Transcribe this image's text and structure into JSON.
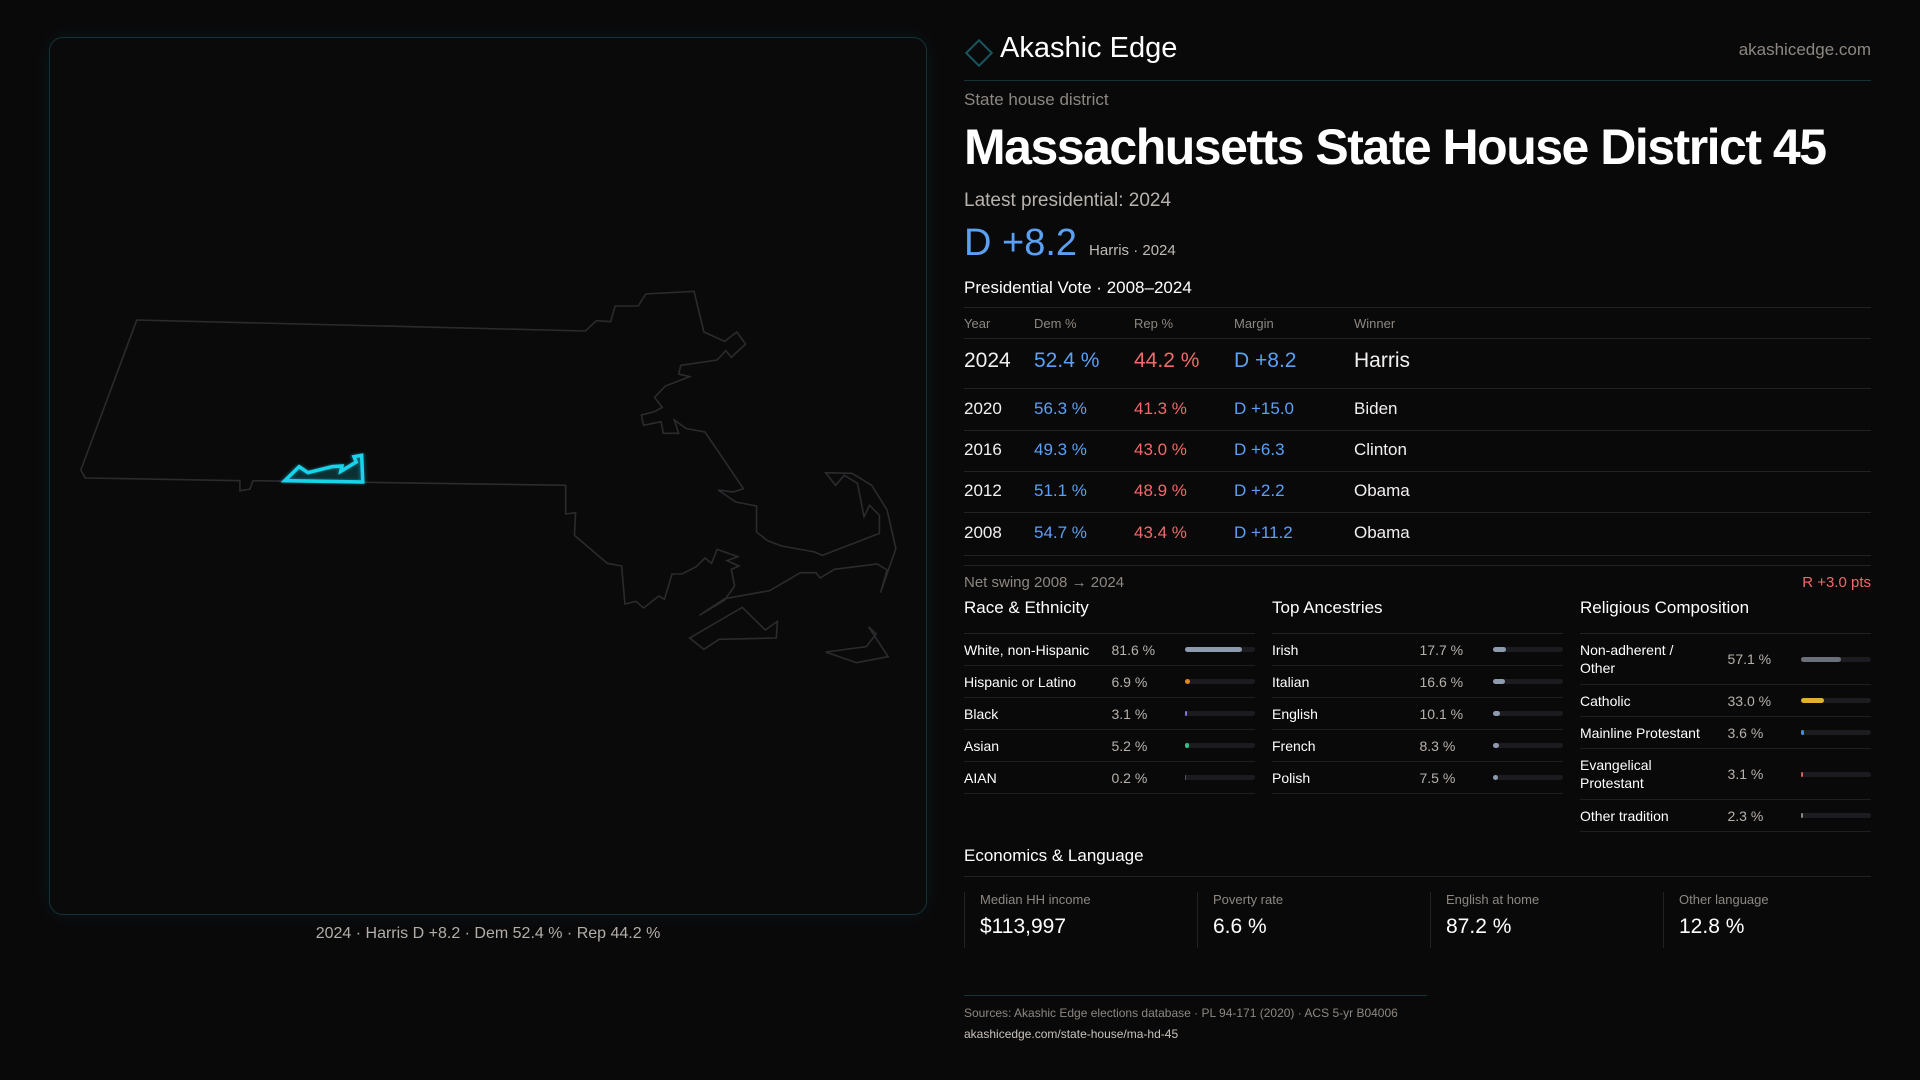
{
  "brand": {
    "name": "Akashic Edge",
    "url": "akashicedge.com"
  },
  "kicker": "State house district",
  "title": "Massachusetts State House District 45",
  "latest_label": "Latest presidential: 2024",
  "headline": {
    "margin": "D +8.2",
    "sub": "Harris · 2024"
  },
  "colors": {
    "dem": "#5aa0f5",
    "rep": "#f06a6a",
    "highlight": "#19d3ea"
  },
  "map": {
    "caption": "2024 · Harris D +8.2 · Dem 52.4 % · Rep 44.2 %"
  },
  "table": {
    "title": "Presidential Vote · 2008–2024",
    "headers": [
      "Year",
      "Dem %",
      "Rep %",
      "Margin",
      "Winner"
    ],
    "rows": [
      {
        "year": "2024",
        "dem": "52.4 %",
        "rep": "44.2 %",
        "margin": "D +8.2",
        "winner": "Harris"
      },
      {
        "year": "2020",
        "dem": "56.3 %",
        "rep": "41.3 %",
        "margin": "D +15.0",
        "winner": "Biden"
      },
      {
        "year": "2016",
        "dem": "49.3 %",
        "rep": "43.0 %",
        "margin": "D +6.3",
        "winner": "Clinton"
      },
      {
        "year": "2012",
        "dem": "51.1 %",
        "rep": "48.9 %",
        "margin": "D +2.2",
        "winner": "Obama"
      },
      {
        "year": "2008",
        "dem": "54.7 %",
        "rep": "43.4 %",
        "margin": "D +11.2",
        "winner": "Obama"
      }
    ]
  },
  "swing": {
    "label": "Net swing 2008 → 2024",
    "value": "R +3.0 pts"
  },
  "sections": [
    {
      "title": "Race & Ethnicity",
      "items": [
        {
          "label": "White, non-Hispanic",
          "value": "81.6 %",
          "pct": 81.6,
          "color": "#8e9aae"
        },
        {
          "label": "Hispanic or Latino",
          "value": "6.9 %",
          "pct": 6.9,
          "color": "#d98a1a"
        },
        {
          "label": "Black",
          "value": "3.1 %",
          "pct": 3.1,
          "color": "#8a6ef0"
        },
        {
          "label": "Asian",
          "value": "5.2 %",
          "pct": 5.2,
          "color": "#2fbf8a"
        },
        {
          "label": "AIAN",
          "value": "0.2 %",
          "pct": 0.2,
          "color": "#555"
        }
      ]
    },
    {
      "title": "Top Ancestries",
      "items": [
        {
          "label": "Irish",
          "value": "17.7 %",
          "pct": 17.7,
          "color": "#8e9aae"
        },
        {
          "label": "Italian",
          "value": "16.6 %",
          "pct": 16.6,
          "color": "#8e9aae"
        },
        {
          "label": "English",
          "value": "10.1 %",
          "pct": 10.1,
          "color": "#8e9aae"
        },
        {
          "label": "French",
          "value": "8.3 %",
          "pct": 8.3,
          "color": "#8e9aae"
        },
        {
          "label": "Polish",
          "value": "7.5 %",
          "pct": 7.5,
          "color": "#8e9aae"
        }
      ]
    },
    {
      "title": "Religious Composition",
      "items": [
        {
          "label": "Non-adherent / Other",
          "value": "57.1 %",
          "pct": 57.1,
          "color": "#6b6f7a"
        },
        {
          "label": "Catholic",
          "value": "33.0 %",
          "pct": 33.0,
          "color": "#e0b030"
        },
        {
          "label": "Mainline Protestant",
          "value": "3.6 %",
          "pct": 3.6,
          "color": "#4a86e8"
        },
        {
          "label": "Evangelical Protestant",
          "value": "3.1 %",
          "pct": 3.1,
          "color": "#e05a5a"
        },
        {
          "label": "Other tradition",
          "value": "2.3 %",
          "pct": 2.3,
          "color": "#888888"
        }
      ]
    }
  ],
  "economics": {
    "title": "Economics & Language",
    "cards": [
      {
        "label": "Median HH income",
        "value": "$113,997"
      },
      {
        "label": "Poverty rate",
        "value": "6.6 %"
      },
      {
        "label": "English at home",
        "value": "87.2 %"
      },
      {
        "label": "Other language",
        "value": "12.8 %"
      }
    ]
  },
  "footer": {
    "sources": "Sources: Akashic Edge elections database · PL 94-171 (2020) · ACS 5-yr B04006",
    "url": "akashicedge.com/state-house/ma-hd-45"
  }
}
